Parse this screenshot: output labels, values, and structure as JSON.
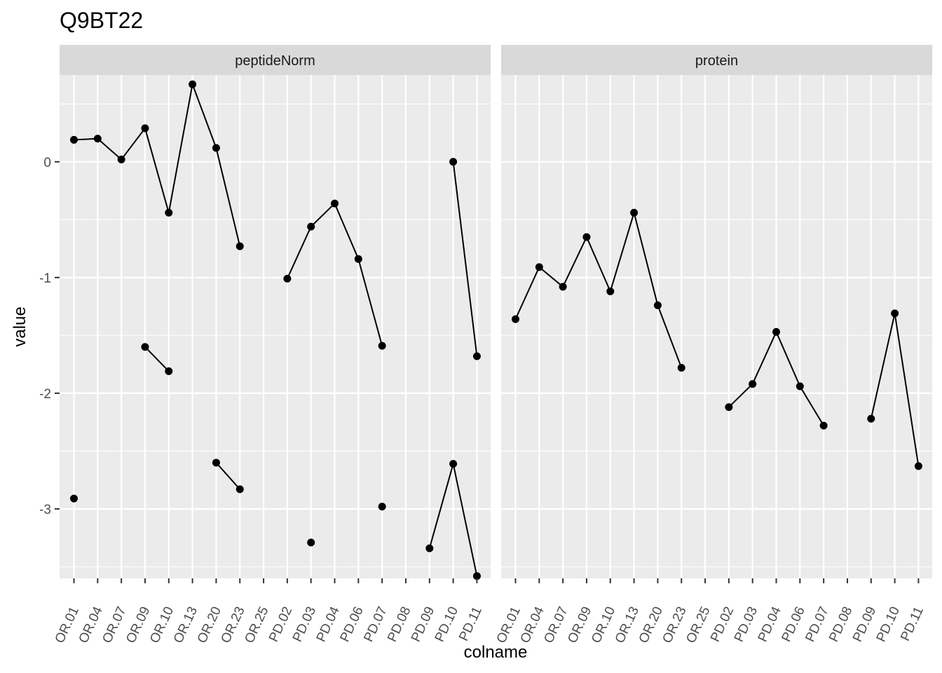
{
  "chart_data": {
    "type": "line",
    "title": "Q9BT22",
    "xlabel": "colname",
    "ylabel": "value",
    "ylim": [
      -3.6,
      0.75
    ],
    "y_ticks": [
      0,
      -1,
      -2,
      -3
    ],
    "categories": [
      "OR.01",
      "OR.04",
      "OR.07",
      "OR.09",
      "OR.10",
      "OR.13",
      "OR.20",
      "OR.23",
      "OR.25",
      "PD.02",
      "PD.03",
      "PD.04",
      "PD.06",
      "PD.07",
      "PD.08",
      "PD.09",
      "PD.10",
      "PD.11"
    ],
    "grid": true,
    "legend": "none",
    "panels": [
      {
        "name": "peptideNorm",
        "series": [
          {
            "values": [
              0.19,
              0.2,
              0.02,
              0.29,
              -0.44,
              0.67,
              0.12,
              -0.73,
              null,
              -1.01,
              -0.56,
              -0.36,
              -0.84,
              -1.59,
              null,
              null,
              0.0,
              -1.68
            ]
          },
          {
            "values": [
              null,
              null,
              null,
              -1.6,
              -1.81,
              null,
              null,
              null,
              null,
              null,
              null,
              null,
              null,
              null,
              null,
              null,
              null,
              null
            ]
          },
          {
            "values": [
              -2.91,
              null,
              null,
              null,
              null,
              null,
              -2.6,
              -2.83,
              null,
              null,
              -3.29,
              null,
              null,
              -2.98,
              null,
              -3.34,
              -2.61,
              -3.58
            ]
          }
        ]
      },
      {
        "name": "protein",
        "series": [
          {
            "values": [
              -1.36,
              -0.91,
              -1.08,
              -0.65,
              -1.12,
              -0.44,
              -1.24,
              -1.78,
              null,
              -2.12,
              -1.92,
              -1.47,
              -1.94,
              -2.28,
              null,
              -2.22,
              -1.31,
              -2.63
            ]
          }
        ]
      }
    ]
  }
}
